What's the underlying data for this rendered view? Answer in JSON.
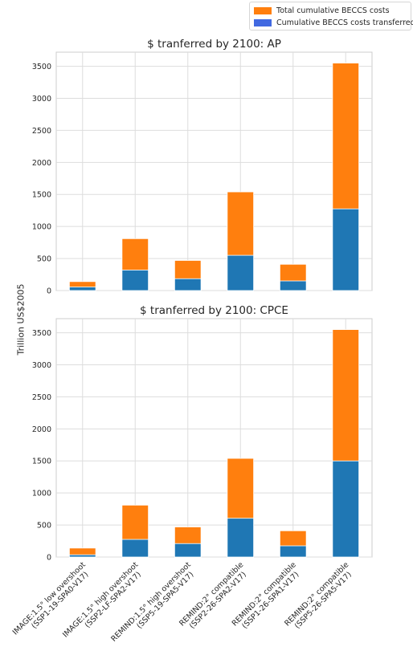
{
  "chart_data": {
    "type": "bar",
    "stacked": true,
    "ylabel": "Trillion US$2005",
    "legend": {
      "placement": "top-right",
      "entries": [
        {
          "label": "Total cumulative BECCS costs",
          "color": "#ff7f0e"
        },
        {
          "label": "Cumulative BECCS costs transferred",
          "color": "#4169e1"
        }
      ]
    },
    "categories": [
      {
        "line1": "IMAGE:1.5° low overshoot",
        "line2": "(SSP1-19-SPA0-V17)"
      },
      {
        "line1": "IMAGE:1.5° high overshoot",
        "line2": "(SSP2-LF-SPA2-V17)"
      },
      {
        "line1": "REMIND:1.5° high overshoot",
        "line2": "(SSP5-19-SPA5-V17)"
      },
      {
        "line1": "REMIND:2° compatible",
        "line2": "(SSP2-26-SPA2-V17)"
      },
      {
        "line1": "REMIND:2° compatible",
        "line2": "(SSP1-26-SPA1-V17)"
      },
      {
        "line1": "REMIND:2° compatible",
        "line2": "(SSP5-26-SPA5-V17)"
      }
    ],
    "colors": {
      "total": "#ff7f0e",
      "transferred": "#1f77b4"
    },
    "yticks": [
      0,
      500,
      1000,
      1500,
      2000,
      2500,
      3000,
      3500
    ],
    "grid": true,
    "panels": [
      {
        "title": "$ tranferred by 2100: AP",
        "ylim": [
          0,
          3720
        ],
        "total": [
          140,
          810,
          470,
          1540,
          410,
          3550
        ],
        "transferred": [
          55,
          320,
          185,
          550,
          150,
          1275
        ]
      },
      {
        "title": "$ tranferred by 2100: CPCE",
        "ylim": [
          0,
          3720
        ],
        "total": [
          140,
          810,
          470,
          1540,
          410,
          3550
        ],
        "transferred": [
          35,
          275,
          210,
          605,
          175,
          1500
        ]
      }
    ]
  }
}
